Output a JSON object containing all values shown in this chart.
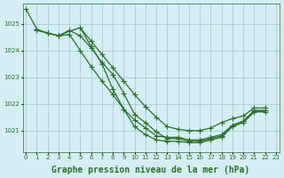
{
  "title": "Graphe pression niveau de la mer (hPa)",
  "background_color": "#d4eef4",
  "line_color": "#2d6e2d",
  "grid_color": "#a0c8c8",
  "x_ticks": [
    0,
    1,
    2,
    3,
    4,
    5,
    6,
    7,
    8,
    9,
    10,
    11,
    12,
    13,
    14,
    15,
    16,
    17,
    18,
    19,
    20,
    21,
    22,
    23
  ],
  "y_ticks": [
    1021,
    1022,
    1023,
    1024,
    1025
  ],
  "ylim": [
    1020.2,
    1025.75
  ],
  "xlim": [
    -0.3,
    23.3
  ],
  "series": [
    [
      1025.55,
      1024.8,
      1024.65,
      1024.55,
      1024.6,
      1024.85,
      1024.2,
      1023.75,
      1023.25,
      1022.65,
      1022.1,
      1021.85,
      1021.7,
      1021.6,
      1021.6,
      1021.55,
      1021.55,
      1021.6,
      1021.6,
      1021.5,
      1021.55,
      1021.8,
      1021.75,
      null
    ],
    [
      null,
      1024.75,
      1024.65,
      1024.55,
      1024.75,
      1024.55,
      1024.1,
      1023.55,
      1023.1,
      1022.4,
      1021.6,
      1021.35,
      1021.0,
      1020.75,
      1020.75,
      1020.65,
      1020.65,
      1020.75,
      1020.85,
      1021.2,
      1021.35,
      1021.75,
      1021.75,
      null
    ],
    [
      null,
      null,
      1024.65,
      1024.55,
      1024.7,
      1024.55,
      1024.05,
      1023.5,
      1023.05,
      1022.3,
      1021.55,
      1021.05,
      1020.7,
      1020.65,
      1020.65,
      1020.6,
      1020.6,
      1020.7,
      1021.0,
      1021.15,
      1021.3,
      1021.7,
      1021.75,
      null
    ],
    [
      null,
      null,
      null,
      null,
      null,
      1024.85,
      1024.15,
      1023.35,
      1022.6,
      1021.75,
      1021.1,
      1020.8,
      1020.65,
      1020.6,
      1020.6,
      1020.55,
      1020.55,
      1020.65,
      1020.75,
      1021.0,
      1021.2,
      1021.65,
      1021.7,
      null
    ]
  ],
  "series2_separate": [
    [
      1025.55,
      1024.8,
      null,
      null,
      null,
      null,
      null,
      null,
      null,
      null,
      null,
      null,
      null,
      null,
      null,
      null,
      null,
      null,
      null,
      null,
      null,
      null,
      null,
      null
    ],
    [
      null,
      null,
      null,
      null,
      null,
      null,
      null,
      null,
      null,
      null,
      null,
      null,
      null,
      null,
      null,
      null,
      null,
      null,
      null,
      null,
      null,
      null,
      null,
      null
    ]
  ],
  "series_long": [
    [
      1025.55,
      1024.8,
      1024.65,
      1024.55,
      1024.6,
      1024.0,
      1023.4,
      1022.85,
      1022.35,
      1021.8,
      1021.3,
      1021.05,
      1020.8,
      1020.75,
      1020.75,
      1020.65,
      1020.65,
      1020.75,
      1020.85,
      1021.2,
      1021.35,
      1021.75,
      1021.75,
      null
    ],
    [
      null,
      null,
      null,
      null,
      null,
      1024.85,
      1024.35,
      1023.85,
      1023.35,
      1022.85,
      1022.35,
      1021.9,
      1021.5,
      1021.15,
      1021.05,
      1021.0,
      1021.0,
      1021.1,
      1021.3,
      1021.45,
      1021.55,
      1021.85,
      1021.85,
      null
    ]
  ],
  "marker": "+",
  "marker_size": 4,
  "line_width": 0.9,
  "title_fontsize": 7,
  "tick_fontsize": 5.0
}
